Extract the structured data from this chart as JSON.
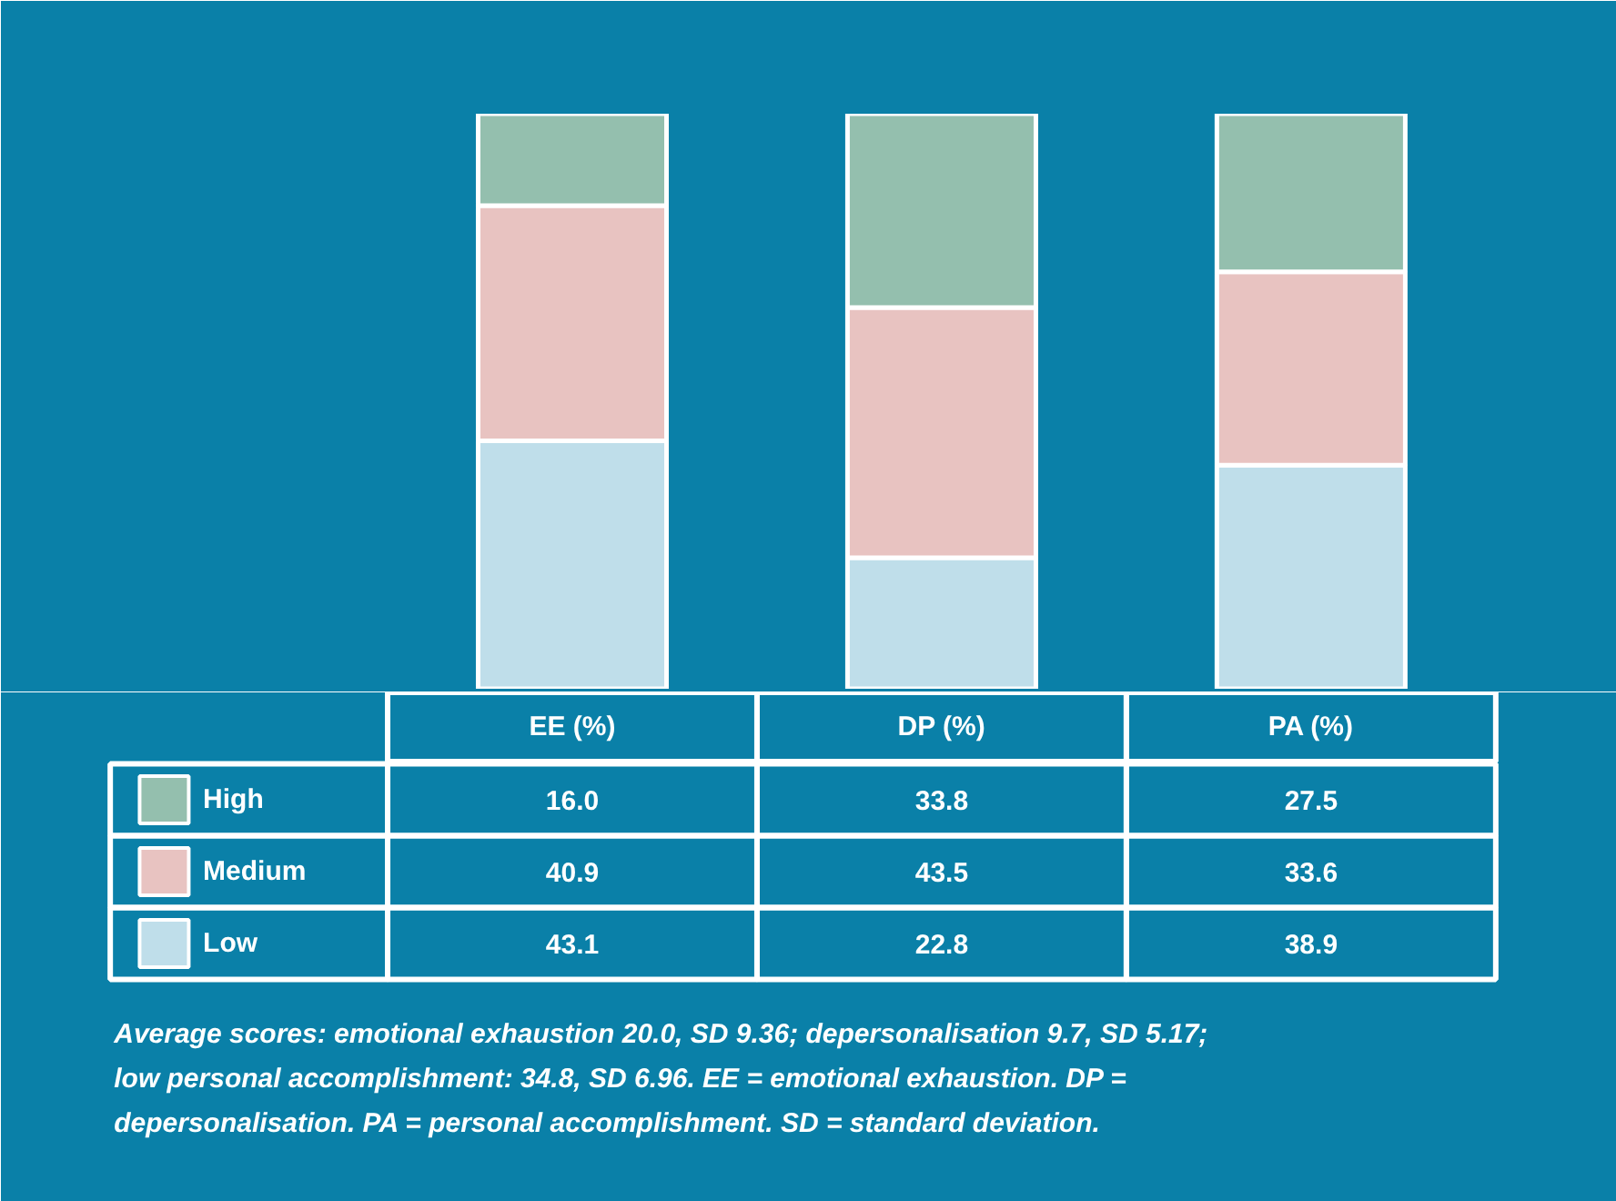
{
  "chart_data": {
    "type": "bar",
    "stacked": true,
    "categories": [
      "EE (%)",
      "DP (%)",
      "PA (%)"
    ],
    "ylim": [
      0,
      100
    ],
    "tick_labels": "x",
    "grid": false,
    "legend": "bottom left",
    "series": [
      {
        "name": "Low",
        "color": "#bfdeea",
        "values": [
          43.1,
          22.8,
          38.9
        ],
        "value_labels": [
          "43.1",
          "22.8",
          "38.9"
        ]
      },
      {
        "name": "Medium",
        "color": "#e8c3c1",
        "values": [
          40.9,
          43.5,
          33.6
        ],
        "value_labels": [
          "40.9",
          "43.5",
          "33.6"
        ]
      },
      {
        "name": "High",
        "color": "#94bfae",
        "values": [
          16.0,
          33.8,
          27.5
        ],
        "value_labels": [
          "16.0",
          "33.8",
          "27.5"
        ]
      }
    ],
    "annotations": [
      "Average scores: emotional exhaustion 20.0, SD 9.36; depersonalisation 9.7, SD 5.17; low personal accomplishment: 34.8, SD 6.96. EE = emotional exhaustion. DP = depersonalisation. PA = personal accomplishment. SD = standard deviation."
    ]
  }
}
